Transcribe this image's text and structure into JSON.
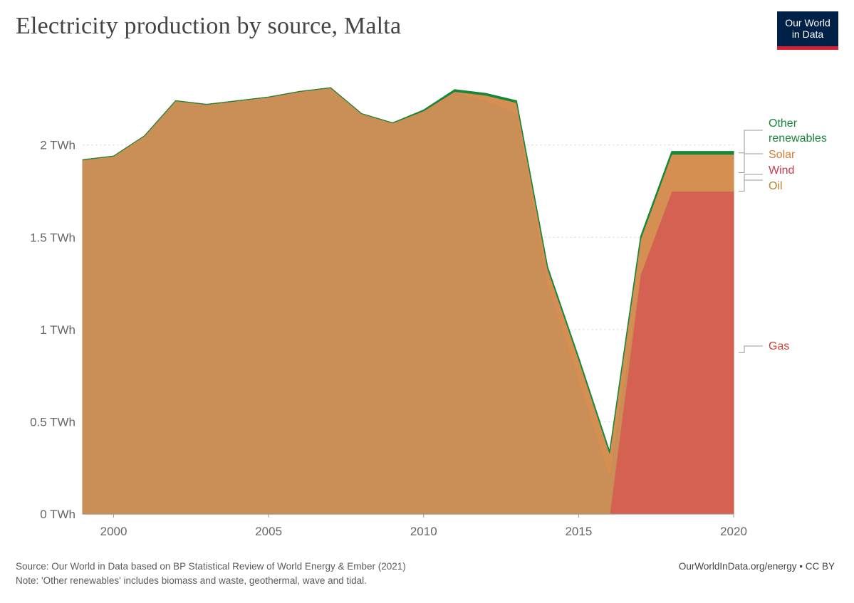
{
  "header": {
    "title": "Electricity production by source, Malta",
    "logo_line1": "Our World",
    "logo_line2": "in Data"
  },
  "footer": {
    "source": "Source: Our World in Data based on BP Statistical Review of World Energy & Ember (2021)",
    "note": "Note: 'Other renewables' includes biomass and waste, geothermal, wave and tidal.",
    "credit": "OurWorldInData.org/energy • CC BY"
  },
  "chart_data": {
    "type": "area",
    "stacked": true,
    "title": "Electricity production by source, Malta",
    "unit": "TWh",
    "x": [
      1999,
      2000,
      2001,
      2002,
      2003,
      2004,
      2005,
      2006,
      2007,
      2008,
      2009,
      2010,
      2011,
      2012,
      2013,
      2014,
      2015,
      2016,
      2017,
      2018,
      2019,
      2020
    ],
    "xlim": [
      1999,
      2020
    ],
    "ylim": [
      0,
      2.4
    ],
    "x_ticks": [
      {
        "value": 2000,
        "label": "2000"
      },
      {
        "value": 2005,
        "label": "2005"
      },
      {
        "value": 2010,
        "label": "2010"
      },
      {
        "value": 2015,
        "label": "2015"
      },
      {
        "value": 2020,
        "label": "2020"
      }
    ],
    "y_ticks": [
      {
        "value": 0,
        "label": "0 TWh"
      },
      {
        "value": 0.5,
        "label": "0.5 TWh"
      },
      {
        "value": 1,
        "label": "1 TWh"
      },
      {
        "value": 1.5,
        "label": "1.5 TWh"
      },
      {
        "value": 2,
        "label": "2 TWh"
      }
    ],
    "series": [
      {
        "name": "Gas",
        "color": "#d46151",
        "values": [
          0,
          0,
          0,
          0,
          0,
          0,
          0,
          0,
          0,
          0,
          0,
          0,
          0,
          0,
          0,
          0,
          0,
          0,
          1.3,
          1.75,
          1.75,
          1.75
        ]
      },
      {
        "name": "Oil",
        "color": "#c98f56",
        "values": [
          1.92,
          1.94,
          2.05,
          2.24,
          2.22,
          2.24,
          2.26,
          2.29,
          2.31,
          2.17,
          2.12,
          2.18,
          2.28,
          2.24,
          2.17,
          1.24,
          0.73,
          0.2,
          0.0,
          0.0,
          0.0,
          0.0
        ]
      },
      {
        "name": "Wind",
        "color": "#c14a5b",
        "values": [
          0,
          0,
          0,
          0,
          0,
          0,
          0,
          0,
          0,
          0,
          0,
          0,
          0,
          0,
          0,
          0,
          0,
          0,
          0,
          0,
          0,
          0
        ]
      },
      {
        "name": "Solar",
        "color": "#d68f53",
        "values": [
          0,
          0,
          0,
          0,
          0,
          0,
          0,
          0,
          0,
          0,
          0,
          0.005,
          0.01,
          0.03,
          0.06,
          0.09,
          0.11,
          0.13,
          0.19,
          0.2,
          0.2,
          0.2
        ]
      },
      {
        "name": "Other renewables",
        "color": "#18873a",
        "values": [
          0,
          0,
          0,
          0,
          0,
          0,
          0,
          0,
          0,
          0,
          0,
          0.005,
          0.01,
          0.01,
          0.01,
          0.01,
          0.01,
          0.01,
          0.015,
          0.015,
          0.015,
          0.015
        ]
      }
    ],
    "legend": [
      {
        "name": "Other renewables",
        "lines": [
          "Other",
          "renewables"
        ],
        "color": "#18873a"
      },
      {
        "name": "Solar",
        "lines": [
          "Solar"
        ],
        "color": "#d67a32"
      },
      {
        "name": "Wind",
        "lines": [
          "Wind"
        ],
        "color": "#c63a52"
      },
      {
        "name": "Oil",
        "lines": [
          "Oil"
        ],
        "color": "#b8812c"
      },
      {
        "name": "Gas",
        "lines": [
          "Gas"
        ],
        "color": "#d13f34"
      }
    ]
  }
}
